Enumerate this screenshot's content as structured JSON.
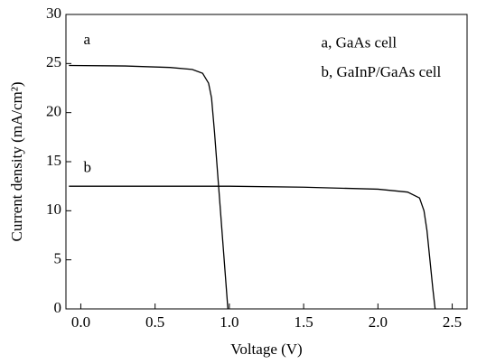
{
  "chart_data": {
    "type": "line",
    "xlabel": "Voltage (V)",
    "ylabel": "Current density (mA/cm²)",
    "annotations": [
      {
        "text": "a",
        "x": 0.0,
        "y": 27.3
      },
      {
        "text": "b",
        "x": 0.0,
        "y": 14.3
      },
      {
        "text": "a, GaAs cell",
        "x": 1.6,
        "y": 27.0
      },
      {
        "text": "b, GaInP/GaAs cell",
        "x": 1.6,
        "y": 24.0
      }
    ],
    "series": [
      {
        "name": "a",
        "color": "#000000",
        "x": [
          -0.08,
          0.3,
          0.6,
          0.75,
          0.82,
          0.86,
          0.88,
          0.9,
          0.92,
          0.94,
          0.96,
          0.98,
          0.99
        ],
        "values": [
          24.8,
          24.75,
          24.6,
          24.4,
          24.0,
          23.0,
          21.5,
          18,
          14,
          10,
          6,
          2,
          0
        ]
      },
      {
        "name": "b",
        "color": "#000000",
        "x": [
          -0.08,
          1.0,
          1.5,
          2.0,
          2.2,
          2.28,
          2.31,
          2.33,
          2.35,
          2.37,
          2.385
        ],
        "values": [
          12.5,
          12.5,
          12.4,
          12.2,
          11.9,
          11.3,
          10,
          8,
          5,
          2,
          0
        ]
      }
    ],
    "xlim": [
      -0.1,
      2.6
    ],
    "xticks": [
      {
        "value": 0,
        "label": "0.0"
      },
      {
        "value": 0.5,
        "label": "0.5"
      },
      {
        "value": 1,
        "label": "1.0"
      },
      {
        "value": 1.5,
        "label": "1.5"
      },
      {
        "value": 2,
        "label": "2.0"
      },
      {
        "value": 2.5,
        "label": "2.5"
      }
    ],
    "ylim": [
      0,
      30
    ],
    "yticks": [
      0,
      5,
      10,
      15,
      20,
      25,
      30
    ]
  }
}
